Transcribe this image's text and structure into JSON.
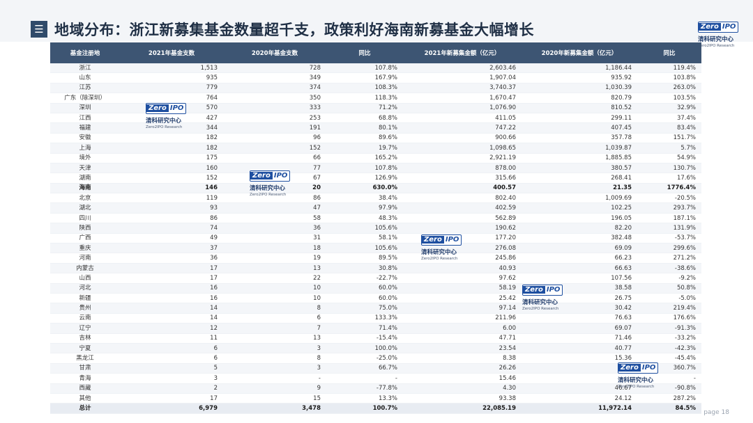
{
  "title": "地域分布：浙江新募集基金数量超千支，政策利好海南新募基金大幅增长",
  "menu_icon": "☰",
  "logo": {
    "mark_z": "Zero",
    "mark_rest": "IPO",
    "cn": "清科研究中心",
    "en": "Zero2IPO Research"
  },
  "table": {
    "headers": [
      "基金注册地",
      "2021年基金支数",
      "2020年基金支数",
      "同比",
      "2021年新募集金额（亿元）",
      "2020年新募集金额（亿元）",
      "同比"
    ],
    "rows": [
      [
        "浙江",
        "1,513",
        "728",
        "107.8%",
        "2,603.46",
        "1,186.44",
        "119.4%"
      ],
      [
        "山东",
        "935",
        "349",
        "167.9%",
        "1,907.04",
        "935.92",
        "103.8%"
      ],
      [
        "江苏",
        "779",
        "374",
        "108.3%",
        "3,740.37",
        "1,030.39",
        "263.0%"
      ],
      [
        "广东（除深圳）",
        "764",
        "350",
        "118.3%",
        "1,670.47",
        "820.79",
        "103.5%"
      ],
      [
        "深圳",
        "570",
        "333",
        "71.2%",
        "1,076.90",
        "810.52",
        "32.9%"
      ],
      [
        "江西",
        "427",
        "253",
        "68.8%",
        "411.05",
        "299.11",
        "37.4%"
      ],
      [
        "福建",
        "344",
        "191",
        "80.1%",
        "747.22",
        "407.45",
        "83.4%"
      ],
      [
        "安徽",
        "182",
        "96",
        "89.6%",
        "900.66",
        "357.78",
        "151.7%"
      ],
      [
        "上海",
        "182",
        "152",
        "19.7%",
        "1,098.65",
        "1,039.87",
        "5.7%"
      ],
      [
        "境外",
        "175",
        "66",
        "165.2%",
        "2,921.19",
        "1,885.85",
        "54.9%"
      ],
      [
        "天津",
        "160",
        "77",
        "107.8%",
        "878.00",
        "380.57",
        "130.7%"
      ],
      [
        "湖南",
        "152",
        "67",
        "126.9%",
        "315.66",
        "268.41",
        "17.6%"
      ],
      [
        "海南",
        "146",
        "20",
        "630.0%",
        "400.57",
        "21.35",
        "1776.4%"
      ],
      [
        "北京",
        "119",
        "86",
        "38.4%",
        "802.40",
        "1,009.69",
        "-20.5%"
      ],
      [
        "湖北",
        "93",
        "47",
        "97.9%",
        "402.59",
        "102.25",
        "293.7%"
      ],
      [
        "四川",
        "86",
        "58",
        "48.3%",
        "562.89",
        "196.05",
        "187.1%"
      ],
      [
        "陕西",
        "74",
        "36",
        "105.6%",
        "190.62",
        "82.20",
        "131.9%"
      ],
      [
        "广西",
        "49",
        "31",
        "58.1%",
        "177.20",
        "382.48",
        "-53.7%"
      ],
      [
        "重庆",
        "37",
        "18",
        "105.6%",
        "276.08",
        "69.09",
        "299.6%"
      ],
      [
        "河南",
        "36",
        "19",
        "89.5%",
        "245.86",
        "66.23",
        "271.2%"
      ],
      [
        "内蒙古",
        "17",
        "13",
        "30.8%",
        "40.93",
        "66.63",
        "-38.6%"
      ],
      [
        "山西",
        "17",
        "22",
        "-22.7%",
        "97.62",
        "107.56",
        "-9.2%"
      ],
      [
        "河北",
        "16",
        "10",
        "60.0%",
        "58.19",
        "38.58",
        "50.8%"
      ],
      [
        "新疆",
        "16",
        "10",
        "60.0%",
        "25.42",
        "26.75",
        "-5.0%"
      ],
      [
        "贵州",
        "14",
        "8",
        "75.0%",
        "97.14",
        "30.42",
        "219.4%"
      ],
      [
        "云南",
        "14",
        "6",
        "133.3%",
        "211.96",
        "76.63",
        "176.6%"
      ],
      [
        "辽宁",
        "12",
        "7",
        "71.4%",
        "6.00",
        "69.07",
        "-91.3%"
      ],
      [
        "吉林",
        "11",
        "13",
        "-15.4%",
        "47.71",
        "71.46",
        "-33.2%"
      ],
      [
        "宁夏",
        "6",
        "3",
        "100.0%",
        "23.54",
        "40.77",
        "-42.3%"
      ],
      [
        "黑龙江",
        "6",
        "8",
        "-25.0%",
        "8.38",
        "15.36",
        "-45.4%"
      ],
      [
        "甘肃",
        "5",
        "3",
        "66.7%",
        "26.26",
        "5.70",
        "360.7%"
      ],
      [
        "青海",
        "3",
        "-",
        "-",
        "15.46",
        "-",
        "-"
      ],
      [
        "西藏",
        "2",
        "9",
        "-77.8%",
        "4.30",
        "46.67",
        "-90.8%"
      ],
      [
        "其他",
        "17",
        "15",
        "13.3%",
        "93.38",
        "24.12",
        "287.2%"
      ]
    ],
    "total": [
      "总计",
      "6,979",
      "3,478",
      "100.7%",
      "22,085.19",
      "11,972.14",
      "84.5%"
    ]
  },
  "page_label": "page  18"
}
